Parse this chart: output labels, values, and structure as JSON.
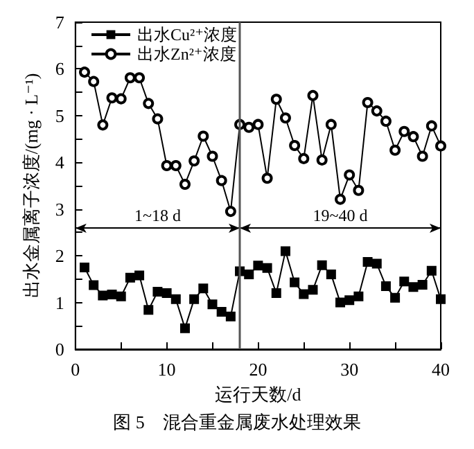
{
  "chart_data": {
    "type": "line",
    "title": "图 5　混合重金属废水处理效果",
    "xlabel": "运行天数/d",
    "ylabel": "出水金属离子浓度/(mg · L⁻¹)",
    "x": [
      1,
      2,
      3,
      4,
      5,
      6,
      7,
      8,
      9,
      10,
      11,
      12,
      13,
      14,
      15,
      16,
      17,
      18,
      19,
      20,
      21,
      22,
      23,
      24,
      25,
      26,
      27,
      28,
      29,
      30,
      31,
      32,
      33,
      34,
      35,
      36,
      37,
      38,
      39,
      40
    ],
    "series": [
      {
        "name": "出水Cu²⁺浓度",
        "color": "#000000",
        "marker": "square",
        "values": [
          1.75,
          1.37,
          1.15,
          1.17,
          1.13,
          1.53,
          1.58,
          0.84,
          1.23,
          1.2,
          1.07,
          0.45,
          1.07,
          1.3,
          0.96,
          0.8,
          0.7,
          1.67,
          1.6,
          1.79,
          1.74,
          1.2,
          2.1,
          1.43,
          1.18,
          1.27,
          1.8,
          1.6,
          1.0,
          1.05,
          1.13,
          1.87,
          1.83,
          1.35,
          1.1,
          1.45,
          1.33,
          1.38,
          1.68,
          1.07
        ]
      },
      {
        "name": "出水Zn²⁺浓度",
        "color": "#000000",
        "marker": "circle",
        "values": [
          5.93,
          5.73,
          4.8,
          5.38,
          5.36,
          5.81,
          5.81,
          5.26,
          4.93,
          3.93,
          3.93,
          3.53,
          4.03,
          4.56,
          4.13,
          3.61,
          2.95,
          4.81,
          4.75,
          4.81,
          3.66,
          5.35,
          4.95,
          4.36,
          4.08,
          5.43,
          4.05,
          4.81,
          3.21,
          3.73,
          3.4,
          5.28,
          5.1,
          4.88,
          4.26,
          4.66,
          4.55,
          4.13,
          4.78,
          4.35
        ]
      }
    ],
    "xlim": [
      0,
      40
    ],
    "xticks": [
      0,
      10,
      20,
      30,
      40
    ],
    "ylim": [
      0,
      7
    ],
    "yticks": [
      0,
      1,
      2,
      3,
      4,
      5,
      6,
      7
    ],
    "grid": false,
    "legend": "top left",
    "ref_lines": [
      {
        "axis": "x",
        "value": 18,
        "color": "#555555"
      }
    ],
    "annotations": [
      "1~18 d",
      "19~40 d"
    ]
  }
}
